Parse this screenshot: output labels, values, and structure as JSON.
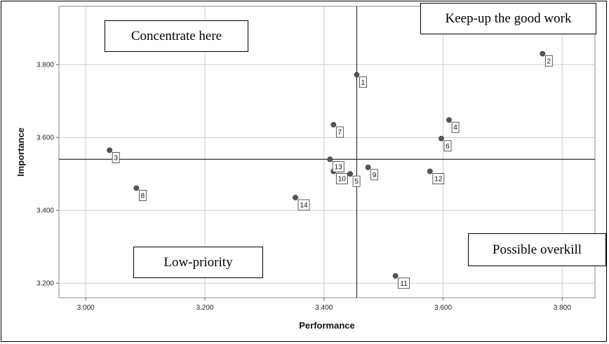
{
  "chart_data": {
    "type": "scatter",
    "xlabel": "Performance",
    "ylabel": "Importance",
    "xlim": [
      2.955,
      3.855
    ],
    "ylim": [
      3.16,
      3.96
    ],
    "xticks": [
      3.0,
      3.2,
      3.4,
      3.6,
      3.8
    ],
    "xtick_labels": [
      "3.000",
      "3.200",
      "3.400",
      "3.600",
      "3.800"
    ],
    "yticks": [
      3.2,
      3.4,
      3.6,
      3.8
    ],
    "ytick_labels": [
      "3.200",
      "3.400",
      "3.600",
      "3.800"
    ],
    "grid": true,
    "mean_lines": {
      "x": 3.455,
      "y": 3.54
    },
    "points": [
      {
        "label": "1",
        "x": 3.455,
        "y": 3.772
      },
      {
        "label": "2",
        "x": 3.767,
        "y": 3.83
      },
      {
        "label": "3",
        "x": 3.04,
        "y": 3.565
      },
      {
        "label": "4",
        "x": 3.61,
        "y": 3.648
      },
      {
        "label": "5",
        "x": 3.444,
        "y": 3.5
      },
      {
        "label": "6",
        "x": 3.597,
        "y": 3.597
      },
      {
        "label": "7",
        "x": 3.416,
        "y": 3.635
      },
      {
        "label": "8",
        "x": 3.085,
        "y": 3.461
      },
      {
        "label": "9",
        "x": 3.474,
        "y": 3.518
      },
      {
        "label": "10",
        "x": 3.416,
        "y": 3.507
      },
      {
        "label": "11",
        "x": 3.52,
        "y": 3.22
      },
      {
        "label": "12",
        "x": 3.578,
        "y": 3.507
      },
      {
        "label": "13",
        "x": 3.41,
        "y": 3.54
      },
      {
        "label": "14",
        "x": 3.352,
        "y": 3.435
      }
    ],
    "annotations": {
      "top_left": "Concentrate here",
      "top_right": "Keep-up the good work",
      "bottom_left": "Low-priority",
      "bottom_right": "Possible overkill"
    }
  },
  "colors": {
    "point": "#555555",
    "grid": "#cccccc",
    "mean_line": "#333333"
  }
}
